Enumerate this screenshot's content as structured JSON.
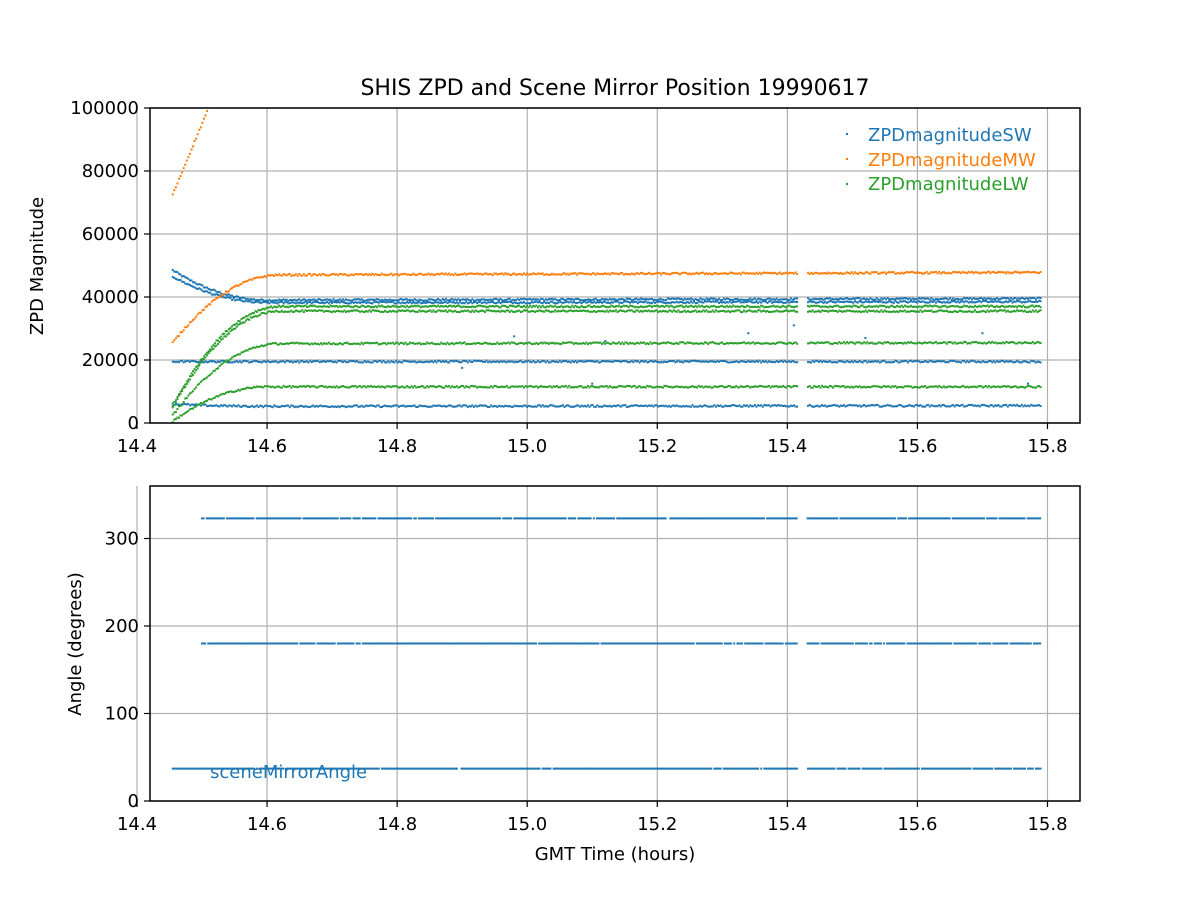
{
  "chart_data": [
    {
      "type": "scatter",
      "title": "SHIS ZPD and Scene Mirror Position 19990617",
      "xlabel": "",
      "ylabel": "ZPD Magnitude",
      "xlim": [
        14.42,
        15.85
      ],
      "ylim": [
        0,
        100000
      ],
      "x_ticks": [
        "14.4",
        "14.6",
        "14.8",
        "15.0",
        "15.2",
        "15.4",
        "15.6",
        "15.8"
      ],
      "y_ticks": [
        "0",
        "20000",
        "40000",
        "60000",
        "80000",
        "100000"
      ],
      "grid": true,
      "legend_position": "top-right",
      "x_range": [
        14.455,
        15.79
      ],
      "data_gap": [
        15.415,
        15.43
      ],
      "series": [
        {
          "name": "ZPDmagnitudeSW",
          "color": "#1f77b4",
          "bands": [
            {
              "start": [
                14.455,
                48500
              ],
              "plateau_start_x": 14.6,
              "plateau": 39000,
              "end": [
                15.79,
                39500
              ]
            },
            {
              "start": [
                14.455,
                46500
              ],
              "plateau_start_x": 14.6,
              "plateau": 38200,
              "end": [
                15.79,
                38500
              ]
            },
            {
              "start": [
                14.455,
                19500
              ],
              "plateau_start_x": 14.6,
              "plateau": 19500,
              "end": [
                15.79,
                19500
              ]
            },
            {
              "start": [
                14.455,
                6000
              ],
              "plateau_start_x": 14.6,
              "plateau": 5300,
              "end": [
                15.79,
                5500
              ]
            }
          ],
          "outliers": [
            [
              14.98,
              27500
            ],
            [
              15.34,
              28500
            ],
            [
              15.41,
              31000
            ],
            [
              15.7,
              28500
            ],
            [
              15.12,
              26000
            ],
            [
              14.9,
              17500
            ],
            [
              15.52,
              27000
            ],
            [
              15.1,
              12500
            ],
            [
              15.77,
              12500
            ]
          ]
        },
        {
          "name": "ZPDmagnitudeMW",
          "color": "#ff7f0e",
          "bands": [
            {
              "start": [
                14.455,
                72500
              ],
              "end": [
                14.51,
                100000
              ]
            },
            {
              "start": [
                14.455,
                25500
              ],
              "plateau_start_x": 14.62,
              "plateau": 47000,
              "end": [
                15.79,
                47800
              ]
            }
          ],
          "outliers": []
        },
        {
          "name": "ZPDmagnitudeLW",
          "color": "#2ca02c",
          "bands": [
            {
              "start": [
                14.455,
                5500
              ],
              "plateau_start_x": 14.62,
              "plateau": 37000,
              "end": [
                15.79,
                37000
              ]
            },
            {
              "start": [
                14.455,
                5000
              ],
              "plateau_start_x": 14.62,
              "plateau": 35500,
              "end": [
                15.79,
                35500
              ]
            },
            {
              "start": [
                14.455,
                2500
              ],
              "plateau_start_x": 14.62,
              "plateau": 25200,
              "end": [
                15.79,
                25500
              ]
            },
            {
              "start": [
                14.455,
                500
              ],
              "plateau_start_x": 14.6,
              "plateau": 11500,
              "end": [
                15.79,
                11500
              ]
            }
          ],
          "outliers": []
        }
      ]
    },
    {
      "type": "scatter",
      "title": "",
      "xlabel": "GMT Time (hours)",
      "ylabel": "Angle (degrees)",
      "xlim": [
        14.42,
        15.85
      ],
      "ylim": [
        0,
        360
      ],
      "x_ticks": [
        "14.4",
        "14.6",
        "14.8",
        "15.0",
        "15.2",
        "15.4",
        "15.6",
        "15.8"
      ],
      "y_ticks": [
        "0",
        "100",
        "200",
        "300"
      ],
      "grid": true,
      "legend_position": "bottom-left",
      "x_range": [
        14.455,
        15.79
      ],
      "data_gap": [
        15.415,
        15.43
      ],
      "series": [
        {
          "name": "sceneMirrorAngle",
          "color": "#1f77b4",
          "levels": [
            {
              "y": 323,
              "x_start": 14.5
            },
            {
              "y": 180,
              "x_start": 14.5
            },
            {
              "y": 37,
              "x_start": 14.455
            }
          ]
        }
      ]
    }
  ]
}
